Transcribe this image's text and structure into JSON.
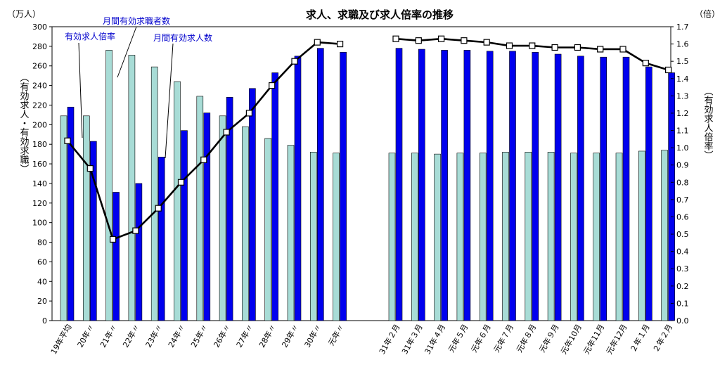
{
  "chart_data": {
    "type": "bar",
    "title": "求人、求職及び求人倍率の推移",
    "left_axis": {
      "unit_label": "（万人）",
      "label": "（有効求人・有効求職）",
      "ylim": [
        0,
        300
      ],
      "ticks": [
        0,
        20,
        40,
        60,
        80,
        100,
        120,
        140,
        160,
        180,
        200,
        220,
        240,
        260,
        280,
        300
      ]
    },
    "right_axis": {
      "unit_label": "（倍）",
      "label": "（有効求人倍率）",
      "ylim": [
        0.0,
        1.7
      ],
      "ticks": [
        "0.0",
        "0.1",
        "0.2",
        "0.3",
        "0.4",
        "0.5",
        "0.6",
        "0.7",
        "0.8",
        "0.9",
        "1.0",
        "1.1",
        "1.2",
        "1.3",
        "1.4",
        "1.5",
        "1.6",
        "1.7"
      ]
    },
    "annotations": [
      "有効求人倍率",
      "月間有効求職者数",
      "月間有効求人数"
    ],
    "categories": [
      "19年平均",
      "20年〃",
      "21年〃",
      "22年〃",
      "23年〃",
      "24年〃",
      "25年〃",
      "26年〃",
      "27年〃",
      "28年〃",
      "29年〃",
      "30年〃",
      "元年〃",
      "31年２月",
      "31年３月",
      "31年４月",
      "元年５月",
      "元年６月",
      "元年７月",
      "元年８月",
      "元年９月",
      "元年10月",
      "元年11月",
      "元年12月",
      "２年１月",
      "２年２月"
    ],
    "series": [
      {
        "name": "月間有効求職者数",
        "type": "bar",
        "axis": "left",
        "color": "#a8dcd6",
        "values": [
          209,
          209,
          276,
          271,
          259,
          244,
          229,
          209,
          198,
          186,
          179,
          172,
          171,
          171,
          171,
          170,
          171,
          171,
          172,
          172,
          172,
          171,
          171,
          171,
          173,
          174
        ]
      },
      {
        "name": "月間有効求人数",
        "type": "bar",
        "axis": "left",
        "color": "#0000ee",
        "values": [
          218,
          183,
          131,
          140,
          167,
          194,
          212,
          228,
          237,
          253,
          270,
          278,
          274,
          278,
          277,
          276,
          276,
          275,
          275,
          274,
          272,
          270,
          269,
          269,
          259,
          253
        ]
      },
      {
        "name": "有効求人倍率",
        "type": "line",
        "axis": "right",
        "color": "#000000",
        "values": [
          1.04,
          0.88,
          0.47,
          0.52,
          0.65,
          0.8,
          0.93,
          1.09,
          1.2,
          1.36,
          1.5,
          1.61,
          1.6,
          1.63,
          1.62,
          1.63,
          1.62,
          1.61,
          1.59,
          1.59,
          1.58,
          1.58,
          1.57,
          1.57,
          1.49,
          1.45
        ]
      }
    ]
  }
}
